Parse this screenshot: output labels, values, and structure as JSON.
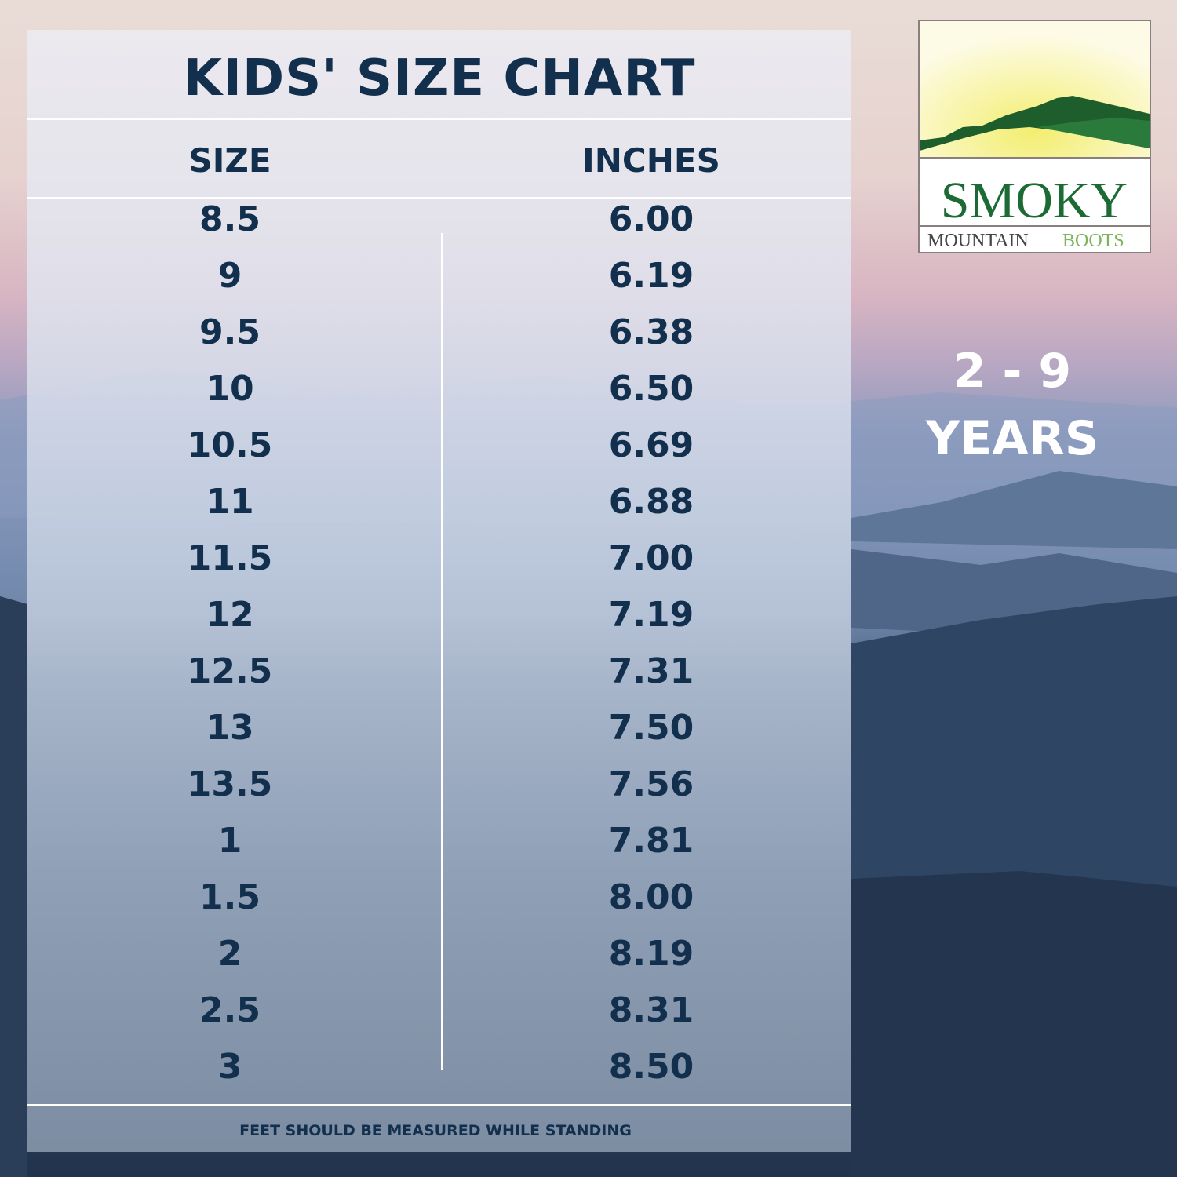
{
  "title": "KIDS' SIZE CHART",
  "headers": {
    "size": "SIZE",
    "inches": "INCHES"
  },
  "rows": [
    {
      "size": "8.5",
      "inches": "6.00"
    },
    {
      "size": "9",
      "inches": "6.19"
    },
    {
      "size": "9.5",
      "inches": "6.38"
    },
    {
      "size": "10",
      "inches": "6.50"
    },
    {
      "size": "10.5",
      "inches": "6.69"
    },
    {
      "size": "11",
      "inches": "6.88"
    },
    {
      "size": "11.5",
      "inches": "7.00"
    },
    {
      "size": "12",
      "inches": "7.19"
    },
    {
      "size": "12.5",
      "inches": "7.31"
    },
    {
      "size": "13",
      "inches": "7.50"
    },
    {
      "size": "13.5",
      "inches": "7.56"
    },
    {
      "size": "1",
      "inches": "7.81"
    },
    {
      "size": "1.5",
      "inches": "8.00"
    },
    {
      "size": "2",
      "inches": "8.19"
    },
    {
      "size": "2.5",
      "inches": "8.31"
    },
    {
      "size": "3",
      "inches": "8.50"
    }
  ],
  "footer": "FEET SHOULD BE MEASURED WHILE STANDING",
  "age_range": {
    "line1": "2 - 9",
    "line2": "YEARS"
  },
  "logo": {
    "word1": "SMOKY",
    "word2": "MOUNTAIN",
    "word3": "BOOTS"
  },
  "colors": {
    "text": "#12304d",
    "logo_green": "#1d6b34",
    "logo_light_green": "#7cb45a"
  }
}
